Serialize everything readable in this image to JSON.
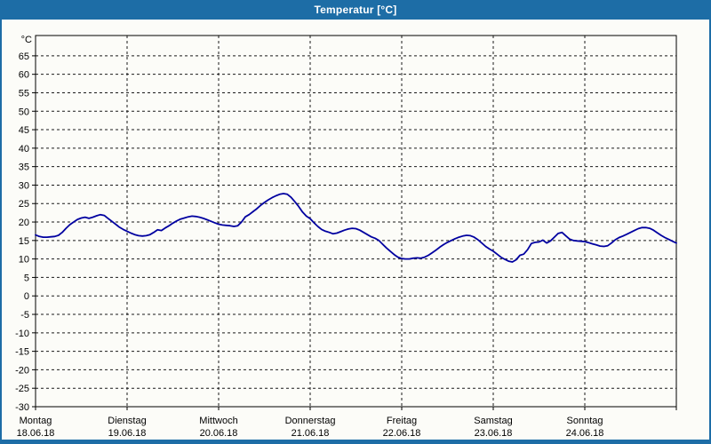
{
  "titlebar": {
    "title": "Temperatur [°C]"
  },
  "colors": {
    "titlebar_bg": "#1D6DA6",
    "window_border": "#1D6DA6",
    "chart_bg": "#FCFCF8",
    "grid": "#1A1A1A",
    "axis": "#000000",
    "series_line": "#0000A0",
    "title_text": "#FFFFFF",
    "label_text": "#000000"
  },
  "chart_data": {
    "type": "line",
    "title": "Temperatur [°C]",
    "ylabel": "°C",
    "xlabel": "",
    "ylim": [
      -30,
      70.5
    ],
    "y_ticks": [
      65,
      60,
      55,
      50,
      45,
      40,
      35,
      30,
      25,
      20,
      15,
      10,
      5,
      0,
      -5,
      -10,
      -15,
      -20,
      -25,
      -30
    ],
    "grid": "dashed",
    "legend": "none",
    "sampling": "hourly",
    "x_axis": {
      "days": [
        {
          "name": "Montag",
          "date": "18.06.18"
        },
        {
          "name": "Dienstag",
          "date": "19.06.18"
        },
        {
          "name": "Mittwoch",
          "date": "20.06.18"
        },
        {
          "name": "Donnerstag",
          "date": "21.06.18"
        },
        {
          "name": "Freitag",
          "date": "22.06.18"
        },
        {
          "name": "Samstag",
          "date": "23.06.18"
        },
        {
          "name": "Sonntag",
          "date": "24.06.18"
        }
      ]
    },
    "series": [
      {
        "name": "Temperatur",
        "unit": "°C",
        "color": "#0000A0",
        "values": [
          16.5,
          16.1,
          15.9,
          15.9,
          16.0,
          16.1,
          16.4,
          17.2,
          18.3,
          19.3,
          20.0,
          20.7,
          21.1,
          21.3,
          21.0,
          21.3,
          21.7,
          22.0,
          21.8,
          21.0,
          20.2,
          19.4,
          18.6,
          18.0,
          17.5,
          17.0,
          16.6,
          16.3,
          16.2,
          16.3,
          16.6,
          17.2,
          17.9,
          17.7,
          18.4,
          19.0,
          19.7,
          20.3,
          20.8,
          21.1,
          21.4,
          21.6,
          21.5,
          21.3,
          21.0,
          20.6,
          20.2,
          19.8,
          19.4,
          19.2,
          19.1,
          19.0,
          18.8,
          19.0,
          20.0,
          21.4,
          22.0,
          22.8,
          23.6,
          24.5,
          25.3,
          26.0,
          26.6,
          27.1,
          27.5,
          27.7,
          27.5,
          26.7,
          25.5,
          24.2,
          22.7,
          21.6,
          20.9,
          19.8,
          18.8,
          18.0,
          17.5,
          17.2,
          16.8,
          17.0,
          17.4,
          17.8,
          18.1,
          18.3,
          18.2,
          17.8,
          17.2,
          16.6,
          16.0,
          15.6,
          15.0,
          14.0,
          13.0,
          12.1,
          11.2,
          10.5,
          10.1,
          10.0,
          10.0,
          10.2,
          10.3,
          10.2,
          10.5,
          11.0,
          11.7,
          12.4,
          13.2,
          13.9,
          14.5,
          15.0,
          15.5,
          15.9,
          16.2,
          16.4,
          16.3,
          15.9,
          15.2,
          14.3,
          13.4,
          12.7,
          12.1,
          11.3,
          10.5,
          9.9,
          9.4,
          9.2,
          9.8,
          11.0,
          11.3,
          12.5,
          14.2,
          14.5,
          14.6,
          15.1,
          14.3,
          14.9,
          15.9,
          16.9,
          17.2,
          16.3,
          15.4,
          15.0,
          14.9,
          14.8,
          14.7,
          14.4,
          14.1,
          13.8,
          13.5,
          13.4,
          13.6,
          14.3,
          15.2,
          15.8,
          16.2,
          16.7,
          17.2,
          17.7,
          18.2,
          18.5,
          18.5,
          18.3,
          17.8,
          17.1,
          16.4,
          15.8,
          15.3,
          14.8,
          14.3
        ]
      }
    ]
  }
}
